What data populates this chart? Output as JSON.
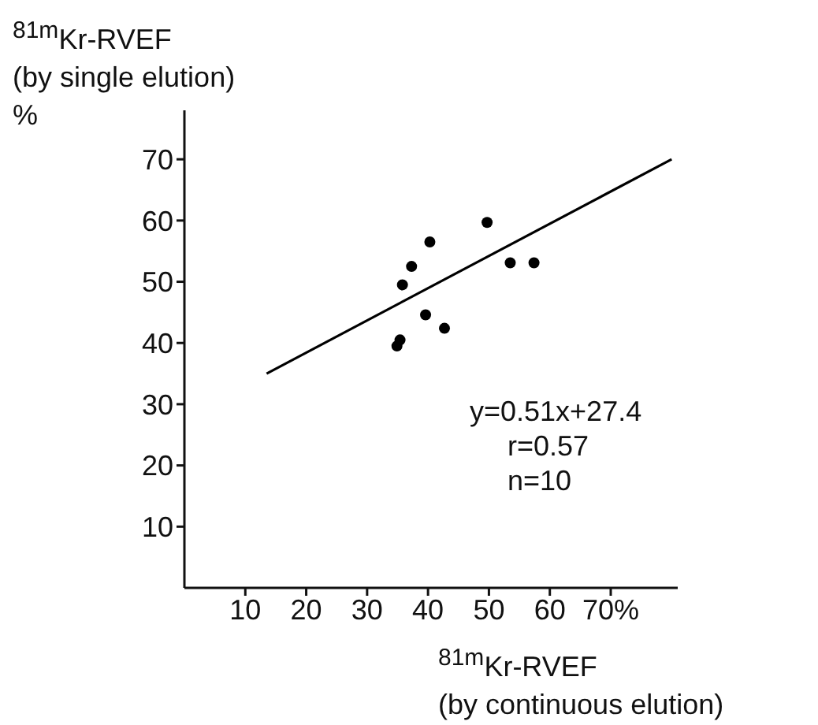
{
  "chart_data": {
    "type": "scatter",
    "xlabel": "$^{81m}$Kr-RVEF\n(by continuous elution)",
    "ylabel": "$^{81m}$Kr-RVEF\n(by single elution)\n%",
    "annotations": [
      "y=0.51x+27.4",
      "r=0.57",
      "n=10"
    ],
    "xlim": [
      0,
      81
    ],
    "xticks": [
      10,
      20,
      30,
      40,
      50,
      60,
      {
        "value": 70,
        "label": "70%"
      }
    ],
    "ylim": [
      0,
      78
    ],
    "yticks": [
      10,
      20,
      30,
      40,
      50,
      60,
      70
    ],
    "grid": false,
    "marker": "circle",
    "series": [
      {
        "color": "#000000",
        "x": [
          35.8,
          37.3,
          40.3,
          49.7,
          53.5,
          57.4,
          39.6,
          42.7,
          35.4,
          34.9
        ],
        "values": [
          49.5,
          52.5,
          56.5,
          59.7,
          53.1,
          53.1,
          44.6,
          42.4,
          40.5,
          39.5
        ]
      },
      {
        "type": "line",
        "color": "#000000",
        "line_style": "solid",
        "marker": "none",
        "x": [
          13.5,
          80
        ],
        "values": [
          35,
          70
        ]
      }
    ]
  }
}
